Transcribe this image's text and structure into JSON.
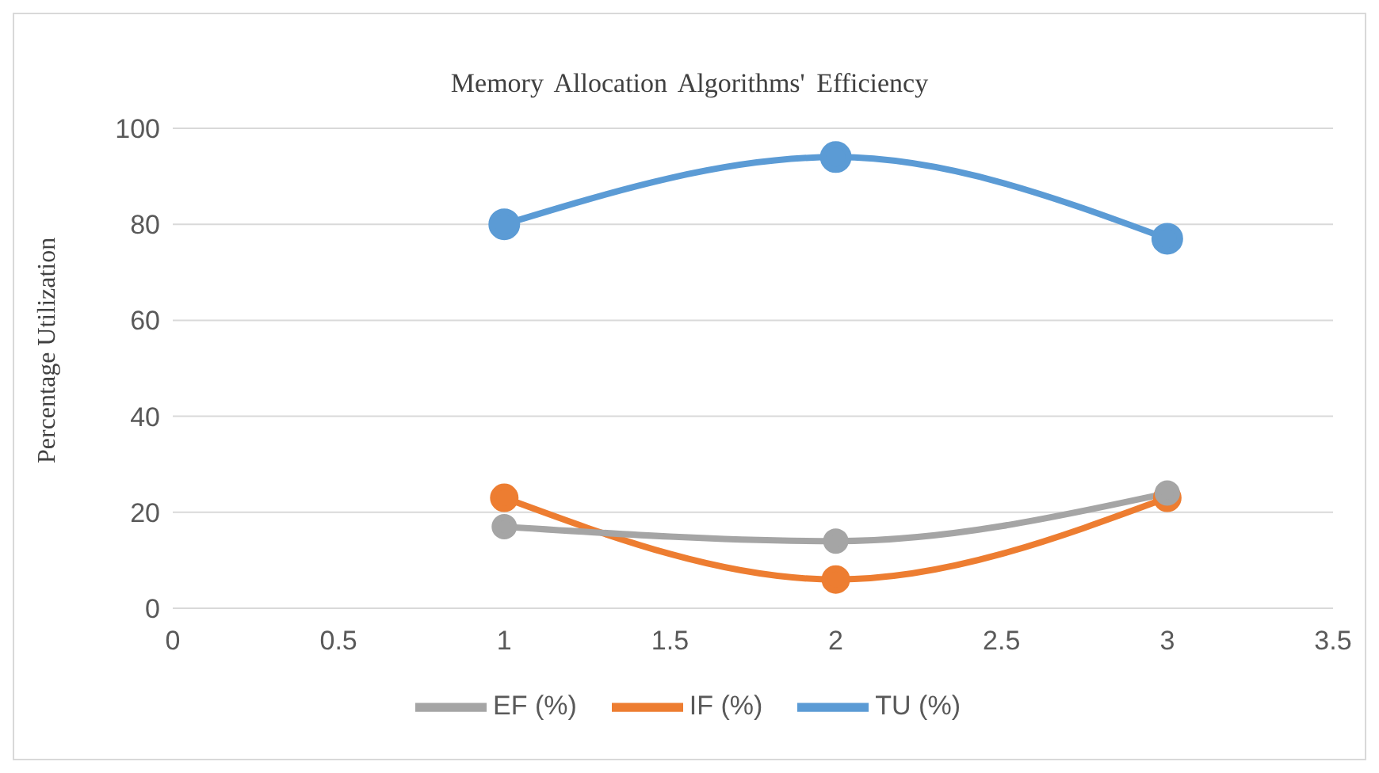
{
  "chart_data": {
    "type": "line",
    "title": "Memory Allocation Algorithms' Efficiency",
    "ylabel": "Percentage  Utilization",
    "x": [
      1,
      2,
      3
    ],
    "series": [
      {
        "name": "TU (%)",
        "color": "#5b9bd5",
        "values": [
          80,
          94,
          77
        ]
      },
      {
        "name": "IF (%)",
        "color": "#ed7d31",
        "values": [
          23,
          6,
          23
        ]
      },
      {
        "name": "EF (%)",
        "color": "#a5a5a5",
        "values": [
          17,
          14,
          24
        ]
      }
    ],
    "xlim": [
      0,
      3.5
    ],
    "xticks": [
      0,
      0.5,
      1,
      1.5,
      2,
      2.5,
      3,
      3.5
    ],
    "ylim": [
      0,
      100
    ],
    "yticks": [
      0,
      20,
      40,
      60,
      80,
      100
    ],
    "grid": "y",
    "legend": "bottom",
    "marker": "circle",
    "line_style": "solid"
  }
}
